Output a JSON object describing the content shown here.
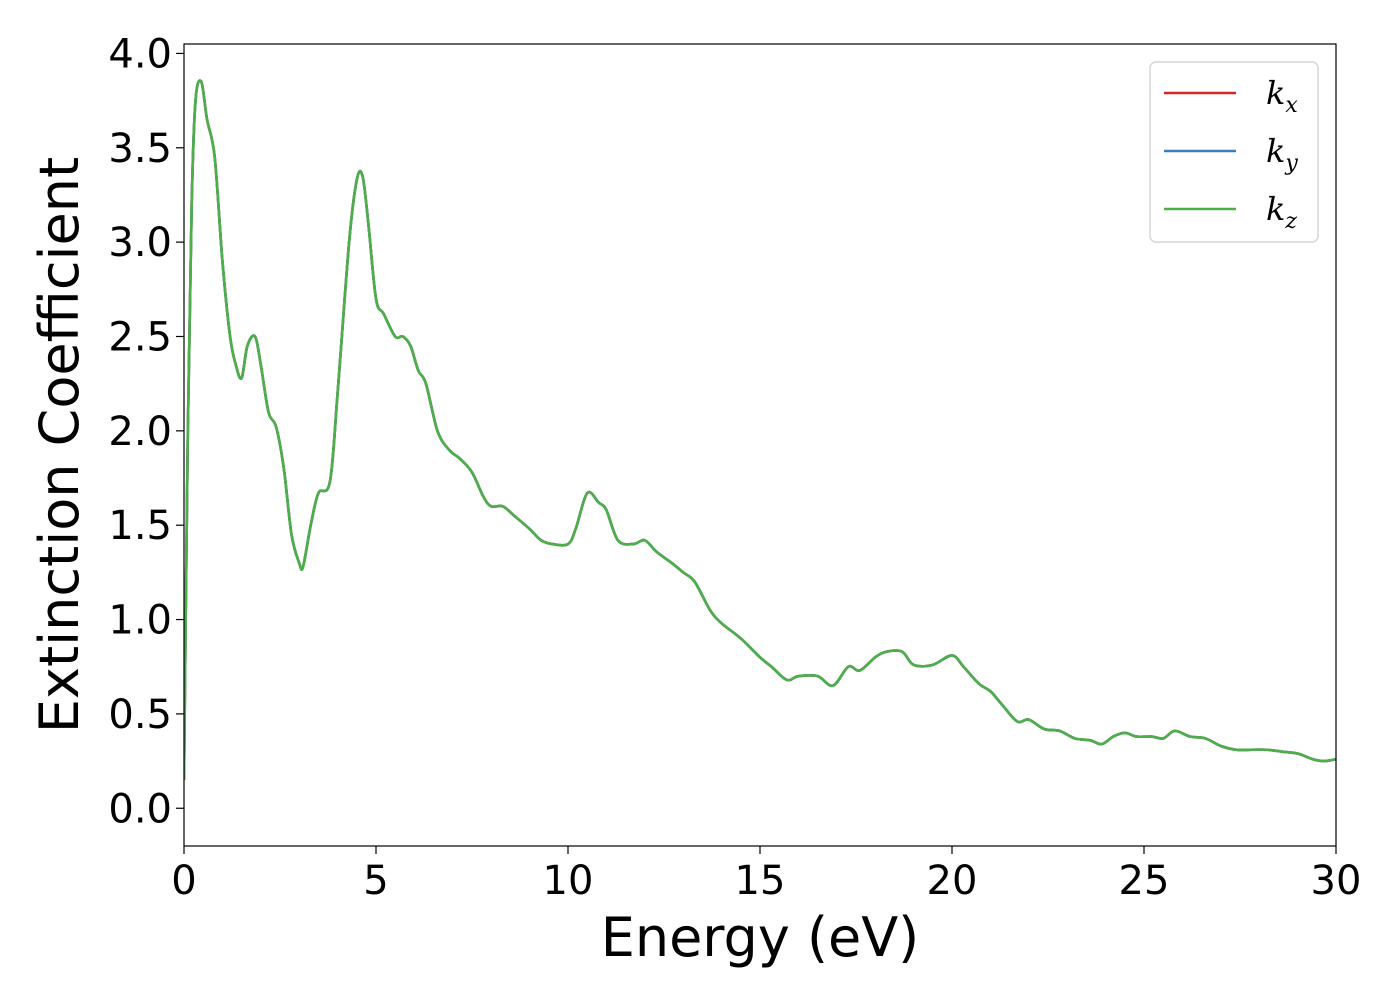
{
  "chart_data": {
    "type": "line",
    "title": "",
    "xlabel": "Energy (eV)",
    "ylabel": "Extinction Coefficient",
    "xlim": [
      0,
      30
    ],
    "ylim": [
      -0.2,
      4.05
    ],
    "xticks": [
      0,
      5,
      10,
      15,
      20,
      25,
      30
    ],
    "xtick_labels": [
      "0",
      "5",
      "10",
      "15",
      "20",
      "25",
      "30"
    ],
    "yticks": [
      0.0,
      0.5,
      1.0,
      1.5,
      2.0,
      2.5,
      3.0,
      3.5,
      4.0
    ],
    "ytick_labels": [
      "0.0",
      "0.5",
      "1.0",
      "1.5",
      "2.0",
      "2.5",
      "3.0",
      "3.5",
      "4.0"
    ],
    "grid": false,
    "legend_position": "top-right",
    "colors": {
      "kx": "#d62728",
      "ky": "#3a7ebf",
      "kz": "#4daf4a"
    },
    "x": [
      0,
      0.1,
      0.2,
      0.3,
      0.45,
      0.6,
      0.8,
      1.0,
      1.2,
      1.35,
      1.5,
      1.65,
      1.85,
      2.0,
      2.2,
      2.4,
      2.6,
      2.8,
      3.0,
      3.1,
      3.3,
      3.5,
      3.8,
      4.0,
      4.3,
      4.5,
      4.65,
      4.8,
      5.0,
      5.2,
      5.5,
      5.7,
      5.9,
      6.1,
      6.3,
      6.6,
      6.9,
      7.2,
      7.5,
      7.8,
      8.0,
      8.3,
      8.6,
      9.0,
      9.3,
      9.6,
      10.0,
      10.2,
      10.5,
      10.8,
      11.0,
      11.3,
      11.7,
      12.0,
      12.3,
      12.7,
      13.0,
      13.3,
      13.7,
      14.0,
      14.5,
      15.0,
      15.3,
      15.7,
      16.0,
      16.5,
      16.9,
      17.3,
      17.6,
      18.0,
      18.3,
      18.7,
      19.0,
      19.5,
      20.0,
      20.3,
      20.7,
      21.0,
      21.3,
      21.7,
      22.0,
      22.4,
      22.8,
      23.2,
      23.6,
      23.9,
      24.2,
      24.5,
      24.8,
      25.2,
      25.5,
      25.8,
      26.2,
      26.6,
      27.0,
      27.4,
      27.8,
      28.2,
      28.6,
      29.0,
      29.4,
      29.7,
      30.0
    ],
    "series": [
      {
        "name": "k_x",
        "values": [
          0.15,
          2.0,
          3.2,
          3.75,
          3.85,
          3.65,
          3.45,
          2.9,
          2.5,
          2.35,
          2.28,
          2.45,
          2.5,
          2.35,
          2.1,
          2.02,
          1.8,
          1.45,
          1.3,
          1.28,
          1.5,
          1.67,
          1.73,
          2.2,
          3.0,
          3.33,
          3.35,
          3.1,
          2.7,
          2.62,
          2.5,
          2.5,
          2.45,
          2.32,
          2.25,
          2.0,
          1.9,
          1.85,
          1.78,
          1.65,
          1.6,
          1.6,
          1.55,
          1.48,
          1.42,
          1.4,
          1.4,
          1.48,
          1.67,
          1.62,
          1.58,
          1.42,
          1.4,
          1.42,
          1.36,
          1.3,
          1.25,
          1.2,
          1.05,
          0.98,
          0.9,
          0.8,
          0.75,
          0.68,
          0.7,
          0.7,
          0.65,
          0.75,
          0.73,
          0.8,
          0.83,
          0.83,
          0.76,
          0.76,
          0.81,
          0.75,
          0.66,
          0.62,
          0.55,
          0.46,
          0.47,
          0.42,
          0.41,
          0.37,
          0.36,
          0.34,
          0.38,
          0.4,
          0.38,
          0.38,
          0.37,
          0.41,
          0.38,
          0.37,
          0.33,
          0.31,
          0.31,
          0.31,
          0.3,
          0.29,
          0.26,
          0.25,
          0.26
        ]
      },
      {
        "name": "k_y",
        "values": [
          0.15,
          2.0,
          3.2,
          3.75,
          3.85,
          3.65,
          3.45,
          2.9,
          2.5,
          2.35,
          2.28,
          2.45,
          2.5,
          2.35,
          2.1,
          2.02,
          1.8,
          1.45,
          1.3,
          1.28,
          1.5,
          1.67,
          1.73,
          2.2,
          3.0,
          3.33,
          3.35,
          3.1,
          2.7,
          2.62,
          2.5,
          2.5,
          2.45,
          2.32,
          2.25,
          2.0,
          1.9,
          1.85,
          1.78,
          1.65,
          1.6,
          1.6,
          1.55,
          1.48,
          1.42,
          1.4,
          1.4,
          1.48,
          1.67,
          1.62,
          1.58,
          1.42,
          1.4,
          1.42,
          1.36,
          1.3,
          1.25,
          1.2,
          1.05,
          0.98,
          0.9,
          0.8,
          0.75,
          0.68,
          0.7,
          0.7,
          0.65,
          0.75,
          0.73,
          0.8,
          0.83,
          0.83,
          0.76,
          0.76,
          0.81,
          0.75,
          0.66,
          0.62,
          0.55,
          0.46,
          0.47,
          0.42,
          0.41,
          0.37,
          0.36,
          0.34,
          0.38,
          0.4,
          0.38,
          0.38,
          0.37,
          0.41,
          0.38,
          0.37,
          0.33,
          0.31,
          0.31,
          0.31,
          0.3,
          0.29,
          0.26,
          0.25,
          0.26
        ]
      },
      {
        "name": "k_z",
        "values": [
          0.15,
          2.0,
          3.2,
          3.75,
          3.85,
          3.65,
          3.45,
          2.9,
          2.5,
          2.35,
          2.28,
          2.45,
          2.5,
          2.35,
          2.1,
          2.02,
          1.8,
          1.45,
          1.3,
          1.28,
          1.5,
          1.67,
          1.73,
          2.2,
          3.0,
          3.33,
          3.35,
          3.1,
          2.7,
          2.62,
          2.5,
          2.5,
          2.45,
          2.32,
          2.25,
          2.0,
          1.9,
          1.85,
          1.78,
          1.65,
          1.6,
          1.6,
          1.55,
          1.48,
          1.42,
          1.4,
          1.4,
          1.48,
          1.67,
          1.62,
          1.58,
          1.42,
          1.4,
          1.42,
          1.36,
          1.3,
          1.25,
          1.2,
          1.05,
          0.98,
          0.9,
          0.8,
          0.75,
          0.68,
          0.7,
          0.7,
          0.65,
          0.75,
          0.73,
          0.8,
          0.83,
          0.83,
          0.76,
          0.76,
          0.81,
          0.75,
          0.66,
          0.62,
          0.55,
          0.46,
          0.47,
          0.42,
          0.41,
          0.37,
          0.36,
          0.34,
          0.38,
          0.4,
          0.38,
          0.38,
          0.37,
          0.41,
          0.38,
          0.37,
          0.33,
          0.31,
          0.31,
          0.31,
          0.3,
          0.29,
          0.26,
          0.25,
          0.26
        ]
      }
    ],
    "legend": [
      {
        "base": "k",
        "sub": "x"
      },
      {
        "base": "k",
        "sub": "y"
      },
      {
        "base": "k",
        "sub": "z"
      }
    ]
  }
}
